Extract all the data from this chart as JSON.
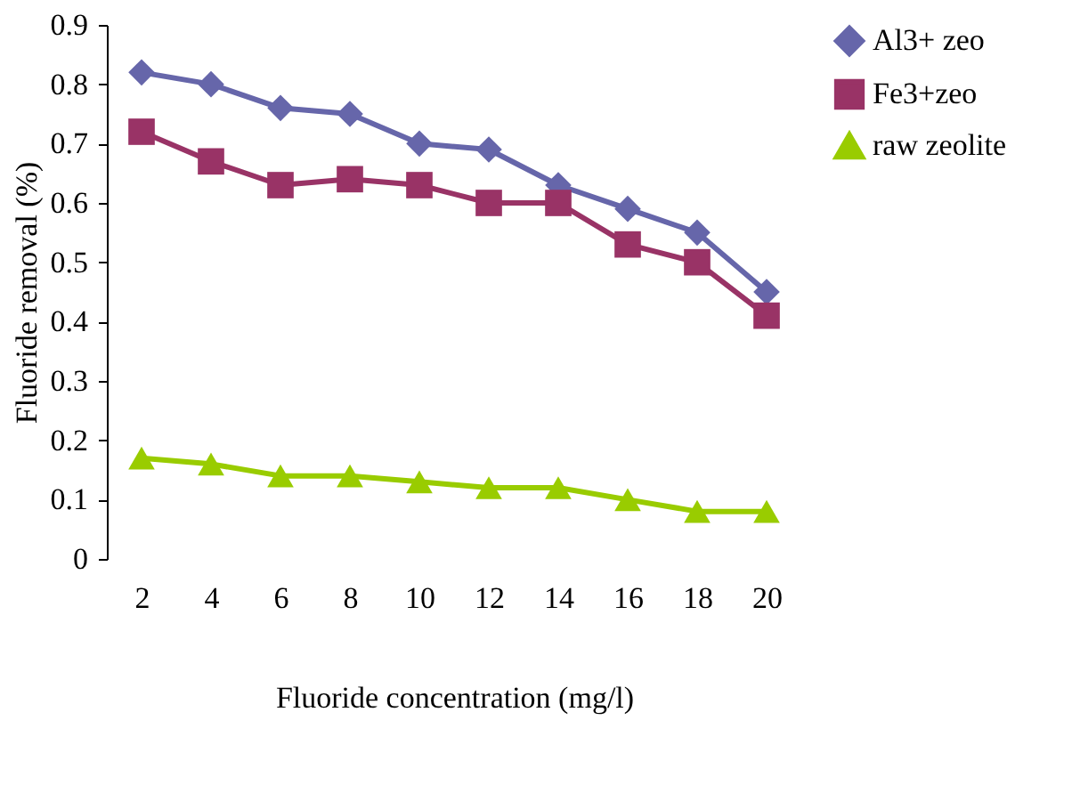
{
  "chart_data": {
    "type": "line",
    "xlabel": "Fluoride concentration (mg/l)",
    "ylabel": "Fluoride removal (%)",
    "categories": [
      "2",
      "4",
      "6",
      "8",
      "10",
      "12",
      "14",
      "16",
      "18",
      "20"
    ],
    "series": [
      {
        "name": "Al3+ zeo",
        "color": "#6666aa",
        "marker": "diamond",
        "values": [
          0.82,
          0.8,
          0.76,
          0.75,
          0.7,
          0.69,
          0.63,
          0.59,
          0.55,
          0.45
        ]
      },
      {
        "name": "Fe3+zeo",
        "color": "#993366",
        "marker": "square",
        "values": [
          0.72,
          0.67,
          0.63,
          0.64,
          0.63,
          0.6,
          0.6,
          0.53,
          0.5,
          0.41
        ]
      },
      {
        "name": "raw zeolite",
        "color": "#99cc00",
        "marker": "triangle",
        "values": [
          0.17,
          0.16,
          0.14,
          0.14,
          0.13,
          0.12,
          0.12,
          0.1,
          0.08,
          0.08
        ]
      }
    ],
    "ylim": [
      0,
      0.9
    ],
    "yticks": [
      0,
      0.1,
      0.2,
      0.3,
      0.4,
      0.5,
      0.6,
      0.7,
      0.8,
      0.9
    ],
    "grid": false,
    "legend": "right",
    "line_style": "solid"
  }
}
